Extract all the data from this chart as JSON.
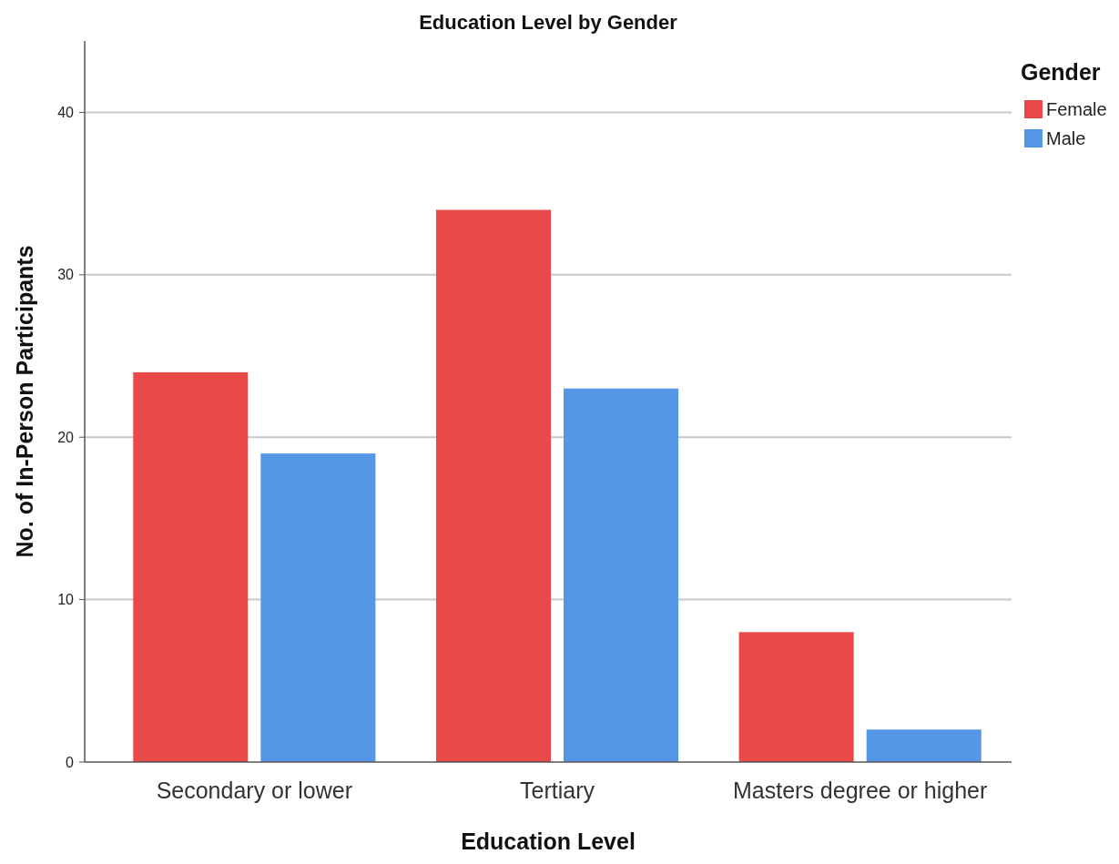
{
  "chart_data": {
    "type": "bar",
    "title": "Education Level by Gender",
    "xlabel": "Education Level",
    "ylabel": "No. of In-Person Participants",
    "legend_title": "Gender",
    "categories": [
      "Secondary or lower",
      "Tertiary",
      "Masters degree or higher"
    ],
    "series": [
      {
        "name": "Female",
        "color": "#e84a4a",
        "values": [
          24,
          34,
          8
        ]
      },
      {
        "name": "Male",
        "color": "#5596e6",
        "values": [
          19,
          23,
          2
        ]
      }
    ],
    "ylim": [
      0,
      44.4
    ],
    "yticks": [
      0,
      10,
      20,
      30,
      40
    ],
    "grid": "y",
    "legend": "top right"
  }
}
